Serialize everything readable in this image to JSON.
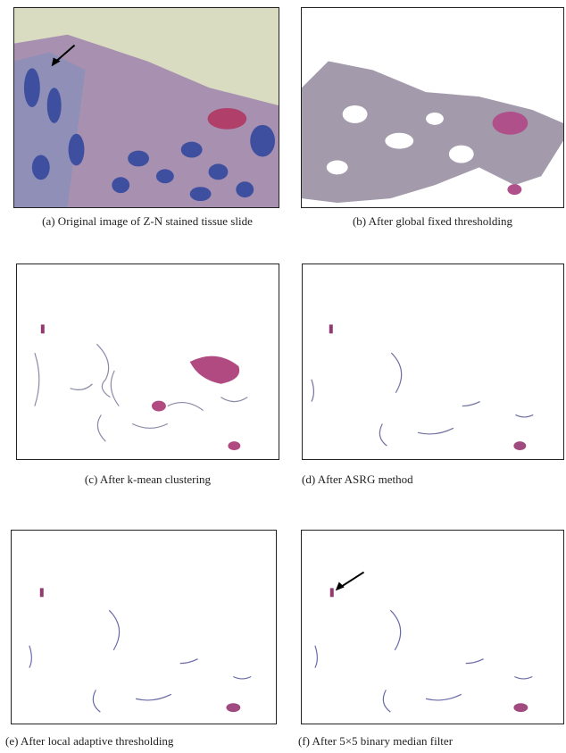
{
  "figure": {
    "panels": [
      {
        "caption": "(a) Original image of Z-N stained tissue slide"
      },
      {
        "caption": "(b) After global fixed thresholding"
      },
      {
        "caption": "(c) After k-mean clustering"
      },
      {
        "caption": "(d) After ASRG method"
      },
      {
        "caption": "(e) After local adaptive thresholding"
      },
      {
        "caption": "(f) After 5×5 binary median filter"
      }
    ]
  }
}
